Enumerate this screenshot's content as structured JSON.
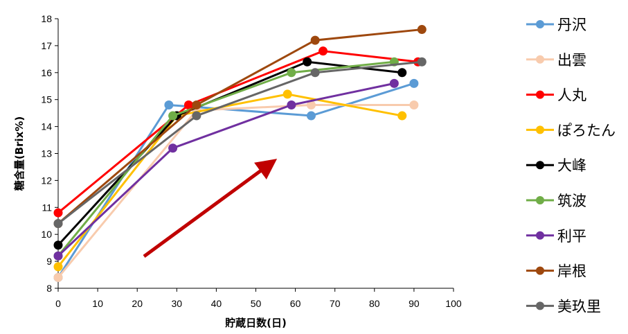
{
  "chart_data": {
    "type": "line",
    "title": "",
    "xlabel": "貯蔵日数(日)",
    "ylabel": "糖含量(Brix%)",
    "xlim": [
      0,
      100
    ],
    "ylim": [
      8,
      18
    ],
    "xticks": [
      0,
      10,
      20,
      30,
      40,
      50,
      60,
      70,
      80,
      90,
      100
    ],
    "yticks": [
      8,
      9,
      10,
      11,
      12,
      13,
      14,
      15,
      16,
      17,
      18
    ],
    "grid": false,
    "legend": "right",
    "annotation": "upward trend arrow",
    "annotation_color": "#c00000",
    "series": [
      {
        "name": "丹沢",
        "color": "#5b9bd5",
        "x": [
          0,
          28,
          64,
          90
        ],
        "y": [
          8.4,
          14.8,
          14.4,
          15.6
        ]
      },
      {
        "name": "出雲",
        "color": "#f8cbad",
        "x": [
          0,
          35,
          64,
          90
        ],
        "y": [
          8.4,
          14.6,
          14.8,
          14.8
        ]
      },
      {
        "name": "人丸",
        "color": "#ff0000",
        "x": [
          0,
          33,
          67,
          91
        ],
        "y": [
          10.8,
          14.8,
          16.8,
          16.4
        ]
      },
      {
        "name": "ぽろたん",
        "color": "#ffc000",
        "x": [
          0,
          30,
          58,
          87
        ],
        "y": [
          8.8,
          14.4,
          15.2,
          14.4
        ]
      },
      {
        "name": "大峰",
        "color": "#000000",
        "x": [
          0,
          30,
          63,
          87
        ],
        "y": [
          9.6,
          14.4,
          16.4,
          16.0
        ]
      },
      {
        "name": "筑波",
        "color": "#70ad47",
        "x": [
          0,
          29,
          59,
          85
        ],
        "y": [
          9.2,
          14.4,
          16.0,
          16.4
        ]
      },
      {
        "name": "利平",
        "color": "#7030a0",
        "x": [
          0,
          29,
          59,
          85
        ],
        "y": [
          9.2,
          13.2,
          14.8,
          15.6
        ]
      },
      {
        "name": "岸根",
        "color": "#9e480e",
        "x": [
          0,
          35,
          65,
          92
        ],
        "y": [
          10.4,
          14.8,
          17.2,
          17.6
        ]
      },
      {
        "name": "美玖里",
        "color": "#666666",
        "x": [
          0,
          35,
          65,
          92
        ],
        "y": [
          10.4,
          14.4,
          16.0,
          16.4
        ]
      }
    ]
  }
}
